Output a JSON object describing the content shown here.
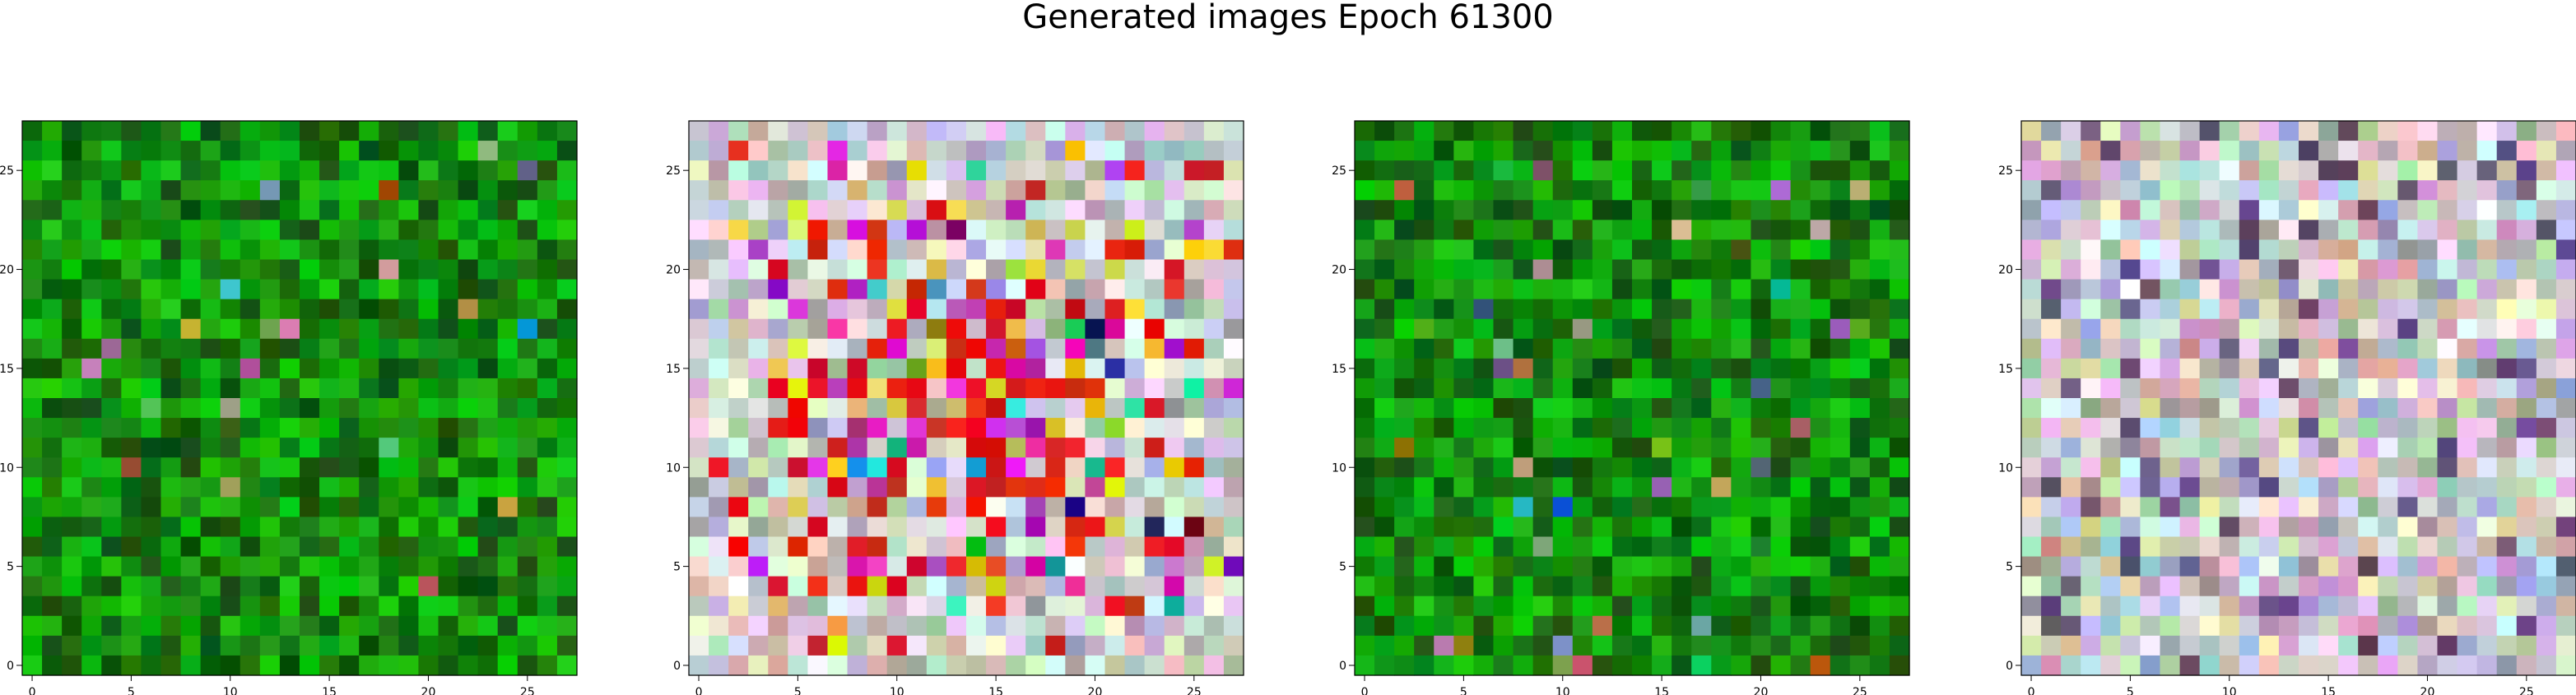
{
  "figure": {
    "title": "Generated images Epoch 61300"
  },
  "chart_data": [
    {
      "type": "heatmap",
      "title": "",
      "grid_size": [
        28,
        28
      ],
      "palette": "green",
      "x_ticks": [
        "0",
        "5",
        "10",
        "15",
        "20",
        "25"
      ],
      "y_ticks": [
        "0",
        "5",
        "10",
        "15",
        "20",
        "25"
      ],
      "xlim": [
        -0.5,
        27.5
      ],
      "ylim": [
        27.5,
        -0.5
      ],
      "grid": false,
      "seed": 11
    },
    {
      "type": "heatmap",
      "title": "",
      "grid_size": [
        28,
        28
      ],
      "palette": "mixed",
      "x_ticks": [
        "0",
        "5",
        "10",
        "15",
        "20",
        "25"
      ],
      "y_ticks": [
        "0",
        "5",
        "10",
        "15",
        "20",
        "25"
      ],
      "xlim": [
        -0.5,
        27.5
      ],
      "ylim": [
        27.5,
        -0.5
      ],
      "grid": false,
      "seed": 23
    },
    {
      "type": "heatmap",
      "title": "",
      "grid_size": [
        28,
        28
      ],
      "palette": "green",
      "x_ticks": [
        "0",
        "5",
        "10",
        "15",
        "20",
        "25"
      ],
      "y_ticks": [
        "0",
        "5",
        "10",
        "15",
        "20",
        "25"
      ],
      "xlim": [
        -0.5,
        27.5
      ],
      "ylim": [
        27.5,
        -0.5
      ],
      "grid": false,
      "seed": 37
    },
    {
      "type": "heatmap",
      "title": "",
      "grid_size": [
        28,
        28
      ],
      "palette": "pastel",
      "x_ticks": [
        "0",
        "5",
        "10",
        "15",
        "20",
        "25"
      ],
      "y_ticks": [
        "0",
        "5",
        "10",
        "15",
        "20",
        "25"
      ],
      "xlim": [
        -0.5,
        27.5
      ],
      "ylim": [
        27.5,
        -0.5
      ],
      "grid": false,
      "seed": 41
    }
  ]
}
